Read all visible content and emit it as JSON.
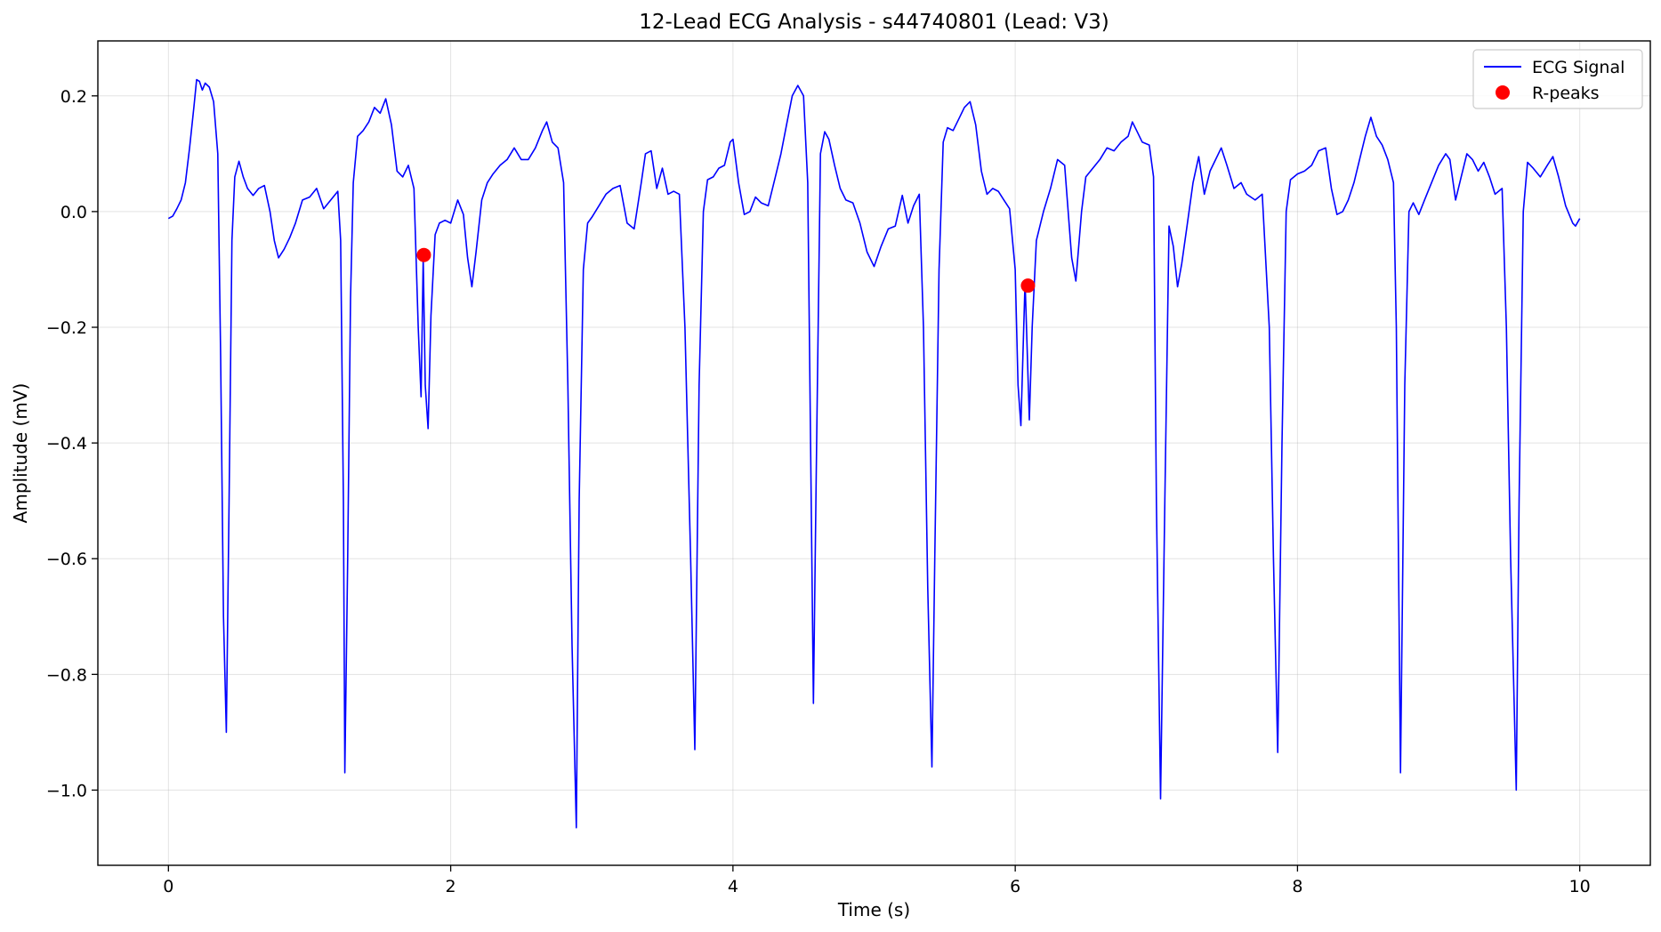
{
  "chart_data": {
    "type": "line",
    "title": "12-Lead ECG Analysis - s44740801 (Lead: V3)",
    "xlabel": "Time (s)",
    "ylabel": "Amplitude (mV)",
    "xlim": [
      -0.5,
      10.5
    ],
    "ylim": [
      -1.13,
      0.295
    ],
    "xticks": [
      0,
      2,
      4,
      6,
      8,
      10
    ],
    "xtick_labels": [
      "0",
      "2",
      "4",
      "6",
      "8",
      "10"
    ],
    "yticks": [
      0.2,
      0.0,
      -0.2,
      -0.4,
      -0.6,
      -0.8,
      -1.0
    ],
    "ytick_labels": [
      "0.2",
      "0.0",
      "−0.2",
      "−0.4",
      "−0.6",
      "−0.8",
      "−1.0"
    ],
    "grid": true,
    "legend_position": "top-right",
    "series": [
      {
        "name": "ECG Signal",
        "kind": "line",
        "color": "#0000ff",
        "points": [
          [
            0.0,
            -0.012
          ],
          [
            0.03,
            -0.008
          ],
          [
            0.06,
            0.005
          ],
          [
            0.09,
            0.02
          ],
          [
            0.12,
            0.05
          ],
          [
            0.15,
            0.11
          ],
          [
            0.18,
            0.18
          ],
          [
            0.2,
            0.228
          ],
          [
            0.22,
            0.225
          ],
          [
            0.24,
            0.21
          ],
          [
            0.26,
            0.222
          ],
          [
            0.29,
            0.215
          ],
          [
            0.32,
            0.19
          ],
          [
            0.35,
            0.1
          ],
          [
            0.37,
            -0.25
          ],
          [
            0.39,
            -0.7
          ],
          [
            0.41,
            -0.9
          ],
          [
            0.43,
            -0.5
          ],
          [
            0.45,
            -0.05
          ],
          [
            0.47,
            0.06
          ],
          [
            0.5,
            0.087
          ],
          [
            0.53,
            0.06
          ],
          [
            0.56,
            0.04
          ],
          [
            0.6,
            0.028
          ],
          [
            0.64,
            0.04
          ],
          [
            0.68,
            0.045
          ],
          [
            0.72,
            0.0
          ],
          [
            0.75,
            -0.05
          ],
          [
            0.78,
            -0.08
          ],
          [
            0.82,
            -0.065
          ],
          [
            0.86,
            -0.045
          ],
          [
            0.9,
            -0.02
          ],
          [
            0.95,
            0.02
          ],
          [
            1.0,
            0.025
          ],
          [
            1.05,
            0.04
          ],
          [
            1.1,
            0.005
          ],
          [
            1.15,
            0.02
          ],
          [
            1.2,
            0.035
          ],
          [
            1.22,
            -0.05
          ],
          [
            1.24,
            -0.5
          ],
          [
            1.25,
            -0.97
          ],
          [
            1.27,
            -0.6
          ],
          [
            1.29,
            -0.15
          ],
          [
            1.31,
            0.05
          ],
          [
            1.34,
            0.13
          ],
          [
            1.38,
            0.14
          ],
          [
            1.42,
            0.155
          ],
          [
            1.46,
            0.18
          ],
          [
            1.5,
            0.17
          ],
          [
            1.54,
            0.195
          ],
          [
            1.58,
            0.15
          ],
          [
            1.62,
            0.07
          ],
          [
            1.66,
            0.06
          ],
          [
            1.7,
            0.08
          ],
          [
            1.74,
            0.04
          ],
          [
            1.77,
            -0.2
          ],
          [
            1.79,
            -0.32
          ],
          [
            1.805,
            -0.08
          ],
          [
            1.82,
            -0.3
          ],
          [
            1.84,
            -0.375
          ],
          [
            1.86,
            -0.18
          ],
          [
            1.89,
            -0.04
          ],
          [
            1.92,
            -0.02
          ],
          [
            1.96,
            -0.015
          ],
          [
            2.0,
            -0.02
          ],
          [
            2.05,
            0.02
          ],
          [
            2.09,
            -0.005
          ],
          [
            2.12,
            -0.08
          ],
          [
            2.15,
            -0.13
          ],
          [
            2.18,
            -0.07
          ],
          [
            2.22,
            0.02
          ],
          [
            2.26,
            0.05
          ],
          [
            2.3,
            0.065
          ],
          [
            2.35,
            0.08
          ],
          [
            2.4,
            0.09
          ],
          [
            2.45,
            0.11
          ],
          [
            2.5,
            0.09
          ],
          [
            2.55,
            0.09
          ],
          [
            2.6,
            0.11
          ],
          [
            2.65,
            0.14
          ],
          [
            2.68,
            0.155
          ],
          [
            2.72,
            0.12
          ],
          [
            2.76,
            0.11
          ],
          [
            2.8,
            0.05
          ],
          [
            2.83,
            -0.3
          ],
          [
            2.86,
            -0.75
          ],
          [
            2.89,
            -1.065
          ],
          [
            2.91,
            -0.5
          ],
          [
            2.94,
            -0.1
          ],
          [
            2.97,
            -0.02
          ],
          [
            3.0,
            -0.01
          ],
          [
            3.05,
            0.01
          ],
          [
            3.1,
            0.03
          ],
          [
            3.15,
            0.04
          ],
          [
            3.2,
            0.045
          ],
          [
            3.25,
            -0.02
          ],
          [
            3.3,
            -0.03
          ],
          [
            3.35,
            0.05
          ],
          [
            3.38,
            0.1
          ],
          [
            3.42,
            0.105
          ],
          [
            3.46,
            0.04
          ],
          [
            3.5,
            0.075
          ],
          [
            3.54,
            0.03
          ],
          [
            3.58,
            0.035
          ],
          [
            3.62,
            0.03
          ],
          [
            3.66,
            -0.2
          ],
          [
            3.7,
            -0.6
          ],
          [
            3.73,
            -0.93
          ],
          [
            3.76,
            -0.3
          ],
          [
            3.79,
            0.0
          ],
          [
            3.82,
            0.055
          ],
          [
            3.86,
            0.06
          ],
          [
            3.9,
            0.075
          ],
          [
            3.94,
            0.08
          ],
          [
            3.98,
            0.12
          ],
          [
            4.0,
            0.125
          ],
          [
            4.04,
            0.05
          ],
          [
            4.08,
            -0.005
          ],
          [
            4.12,
            0.0
          ],
          [
            4.16,
            0.025
          ],
          [
            4.2,
            0.015
          ],
          [
            4.25,
            0.01
          ],
          [
            4.3,
            0.06
          ],
          [
            4.34,
            0.1
          ],
          [
            4.38,
            0.15
          ],
          [
            4.42,
            0.2
          ],
          [
            4.46,
            0.218
          ],
          [
            4.5,
            0.2
          ],
          [
            4.53,
            0.05
          ],
          [
            4.55,
            -0.4
          ],
          [
            4.57,
            -0.85
          ],
          [
            4.59,
            -0.45
          ],
          [
            4.62,
            0.1
          ],
          [
            4.65,
            0.138
          ],
          [
            4.68,
            0.125
          ],
          [
            4.72,
            0.08
          ],
          [
            4.76,
            0.04
          ],
          [
            4.8,
            0.02
          ],
          [
            4.85,
            0.015
          ],
          [
            4.9,
            -0.02
          ],
          [
            4.95,
            -0.07
          ],
          [
            5.0,
            -0.095
          ],
          [
            5.05,
            -0.06
          ],
          [
            5.1,
            -0.03
          ],
          [
            5.15,
            -0.025
          ],
          [
            5.2,
            0.028
          ],
          [
            5.24,
            -0.02
          ],
          [
            5.28,
            0.01
          ],
          [
            5.32,
            0.03
          ],
          [
            5.35,
            -0.2
          ],
          [
            5.38,
            -0.65
          ],
          [
            5.41,
            -0.96
          ],
          [
            5.43,
            -0.6
          ],
          [
            5.46,
            -0.1
          ],
          [
            5.49,
            0.12
          ],
          [
            5.52,
            0.145
          ],
          [
            5.56,
            0.14
          ],
          [
            5.6,
            0.16
          ],
          [
            5.64,
            0.18
          ],
          [
            5.68,
            0.19
          ],
          [
            5.72,
            0.15
          ],
          [
            5.76,
            0.07
          ],
          [
            5.8,
            0.03
          ],
          [
            5.84,
            0.04
          ],
          [
            5.88,
            0.035
          ],
          [
            5.92,
            0.02
          ],
          [
            5.96,
            0.005
          ],
          [
            6.0,
            -0.1
          ],
          [
            6.02,
            -0.3
          ],
          [
            6.04,
            -0.37
          ],
          [
            6.07,
            -0.12
          ],
          [
            6.1,
            -0.36
          ],
          [
            6.12,
            -0.2
          ],
          [
            6.15,
            -0.05
          ],
          [
            6.2,
            0.0
          ],
          [
            6.25,
            0.04
          ],
          [
            6.3,
            0.09
          ],
          [
            6.35,
            0.08
          ],
          [
            6.4,
            -0.08
          ],
          [
            6.43,
            -0.12
          ],
          [
            6.47,
            0.0
          ],
          [
            6.5,
            0.06
          ],
          [
            6.55,
            0.075
          ],
          [
            6.6,
            0.09
          ],
          [
            6.65,
            0.11
          ],
          [
            6.7,
            0.105
          ],
          [
            6.75,
            0.12
          ],
          [
            6.8,
            0.13
          ],
          [
            6.83,
            0.155
          ],
          [
            6.86,
            0.14
          ],
          [
            6.9,
            0.12
          ],
          [
            6.95,
            0.115
          ],
          [
            6.98,
            0.06
          ],
          [
            7.0,
            -0.5
          ],
          [
            7.03,
            -1.015
          ],
          [
            7.06,
            -0.5
          ],
          [
            7.09,
            -0.025
          ],
          [
            7.12,
            -0.06
          ],
          [
            7.15,
            -0.13
          ],
          [
            7.18,
            -0.09
          ],
          [
            7.22,
            -0.02
          ],
          [
            7.26,
            0.05
          ],
          [
            7.3,
            0.095
          ],
          [
            7.34,
            0.03
          ],
          [
            7.38,
            0.07
          ],
          [
            7.42,
            0.09
          ],
          [
            7.46,
            0.11
          ],
          [
            7.5,
            0.08
          ],
          [
            7.55,
            0.04
          ],
          [
            7.6,
            0.05
          ],
          [
            7.64,
            0.03
          ],
          [
            7.7,
            0.02
          ],
          [
            7.75,
            0.03
          ],
          [
            7.8,
            -0.2
          ],
          [
            7.83,
            -0.6
          ],
          [
            7.86,
            -0.935
          ],
          [
            7.89,
            -0.4
          ],
          [
            7.92,
            0.0
          ],
          [
            7.95,
            0.055
          ],
          [
            8.0,
            0.065
          ],
          [
            8.05,
            0.07
          ],
          [
            8.1,
            0.08
          ],
          [
            8.15,
            0.105
          ],
          [
            8.2,
            0.11
          ],
          [
            8.24,
            0.04
          ],
          [
            8.28,
            -0.005
          ],
          [
            8.32,
            0.0
          ],
          [
            8.36,
            0.02
          ],
          [
            8.4,
            0.05
          ],
          [
            8.44,
            0.09
          ],
          [
            8.48,
            0.13
          ],
          [
            8.52,
            0.163
          ],
          [
            8.56,
            0.13
          ],
          [
            8.6,
            0.115
          ],
          [
            8.64,
            0.09
          ],
          [
            8.68,
            0.05
          ],
          [
            8.7,
            -0.2
          ],
          [
            8.73,
            -0.97
          ],
          [
            8.76,
            -0.3
          ],
          [
            8.79,
            0.0
          ],
          [
            8.82,
            0.015
          ],
          [
            8.86,
            -0.005
          ],
          [
            8.9,
            0.02
          ],
          [
            8.95,
            0.05
          ],
          [
            9.0,
            0.08
          ],
          [
            9.05,
            0.1
          ],
          [
            9.08,
            0.09
          ],
          [
            9.12,
            0.02
          ],
          [
            9.16,
            0.06
          ],
          [
            9.2,
            0.1
          ],
          [
            9.24,
            0.09
          ],
          [
            9.28,
            0.07
          ],
          [
            9.32,
            0.085
          ],
          [
            9.36,
            0.06
          ],
          [
            9.4,
            0.03
          ],
          [
            9.45,
            0.04
          ],
          [
            9.48,
            -0.2
          ],
          [
            9.51,
            -0.6
          ],
          [
            9.55,
            -1.0
          ],
          [
            9.57,
            -0.5
          ],
          [
            9.6,
            0.0
          ],
          [
            9.63,
            0.085
          ],
          [
            9.67,
            0.075
          ],
          [
            9.72,
            0.06
          ],
          [
            9.77,
            0.08
          ],
          [
            9.81,
            0.095
          ],
          [
            9.85,
            0.06
          ],
          [
            9.9,
            0.01
          ],
          [
            9.95,
            -0.02
          ],
          [
            9.97,
            -0.025
          ],
          [
            10.0,
            -0.012
          ]
        ]
      },
      {
        "name": "R-peaks",
        "kind": "scatter",
        "color": "#ff0000",
        "points": [
          [
            1.81,
            -0.075
          ],
          [
            6.09,
            -0.128
          ]
        ]
      }
    ]
  }
}
